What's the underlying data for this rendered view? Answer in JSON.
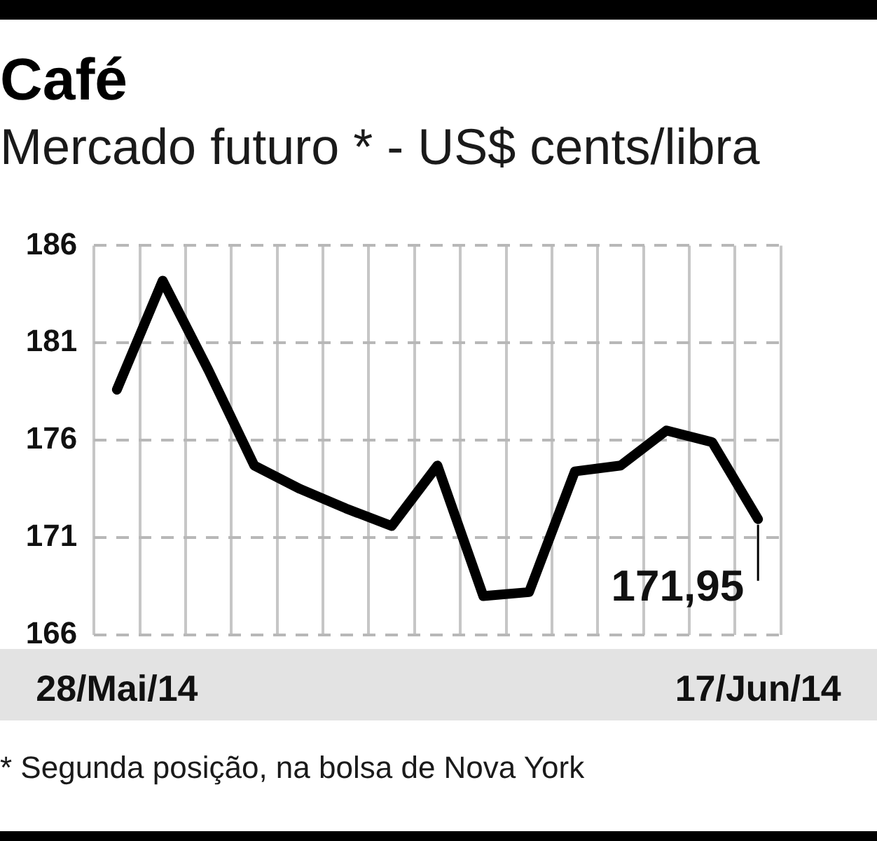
{
  "chart_data": {
    "type": "line",
    "title": "Café",
    "subtitle": "Mercado futuro * - US$ cents/libra",
    "categories": [
      "28/Mai/14",
      null,
      null,
      null,
      null,
      null,
      null,
      null,
      null,
      null,
      null,
      null,
      null,
      null,
      "17/Jun/14"
    ],
    "series": [
      {
        "color": "#000000",
        "values": [
          178.6,
          184.2,
          179.6,
          174.7,
          173.5,
          172.5,
          171.6,
          174.7,
          168.0,
          168.2,
          174.4,
          174.7,
          176.5,
          175.9,
          171.95
        ],
        "value_labels": [
          null,
          null,
          null,
          null,
          null,
          null,
          null,
          null,
          null,
          null,
          null,
          null,
          null,
          null,
          "171,95"
        ]
      }
    ],
    "ylim": [
      166,
      186
    ],
    "yticks": [
      166,
      171,
      176,
      181,
      186
    ],
    "grid": true,
    "legend": false,
    "marker": "none",
    "line_style": "solid",
    "annotations": [
      "* Segunda posição, na bolsa de Nova York"
    ]
  }
}
